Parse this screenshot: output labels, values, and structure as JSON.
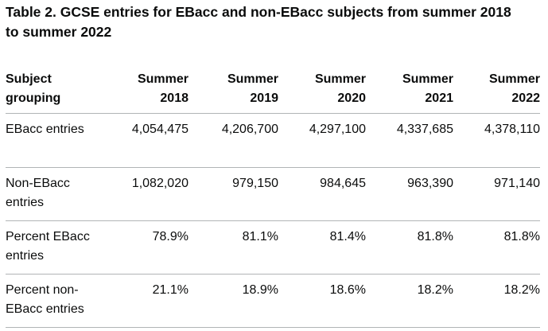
{
  "caption": "Table 2. GCSE entries for EBacc and non-EBacc subjects from summer 2018 to summer 2022",
  "table": {
    "header": {
      "label_line1": "Subject",
      "label_line2": "grouping",
      "columns": [
        {
          "line1": "Summer",
          "line2": "2018"
        },
        {
          "line1": "Summer",
          "line2": "2019"
        },
        {
          "line1": "Summer",
          "line2": "2020"
        },
        {
          "line1": "Summer",
          "line2": "2021"
        },
        {
          "line1": "Summer",
          "line2": "2022"
        }
      ]
    },
    "rows": [
      {
        "label": "EBacc entries",
        "values": [
          "4,054,475",
          "4,206,700",
          "4,297,100",
          "4,337,685",
          "4,378,110"
        ]
      },
      {
        "label": "Non-EBacc entries",
        "values": [
          "1,082,020",
          "979,150",
          "984,645",
          "963,390",
          "971,140"
        ]
      },
      {
        "label": "Percent EBacc entries",
        "values": [
          "78.9%",
          "81.1%",
          "81.4%",
          "81.8%",
          "81.8%"
        ]
      },
      {
        "label": "Percent non-EBacc entries",
        "values": [
          "21.1%",
          "18.9%",
          "18.6%",
          "18.2%",
          "18.2%"
        ]
      }
    ]
  },
  "chart_data": {
    "type": "table",
    "title": "Table 2. GCSE entries for EBacc and non-EBacc subjects from summer 2018 to summer 2022",
    "columns": [
      "Subject grouping",
      "Summer 2018",
      "Summer 2019",
      "Summer 2020",
      "Summer 2021",
      "Summer 2022"
    ],
    "rows": [
      [
        "EBacc entries",
        4054475,
        4206700,
        4297100,
        4337685,
        4378110
      ],
      [
        "Non-EBacc entries",
        1082020,
        979150,
        984645,
        963390,
        971140
      ],
      [
        "Percent EBacc entries",
        78.9,
        81.1,
        81.4,
        81.8,
        81.8
      ],
      [
        "Percent non-EBacc entries",
        21.1,
        18.9,
        18.6,
        18.2,
        18.2
      ]
    ]
  }
}
